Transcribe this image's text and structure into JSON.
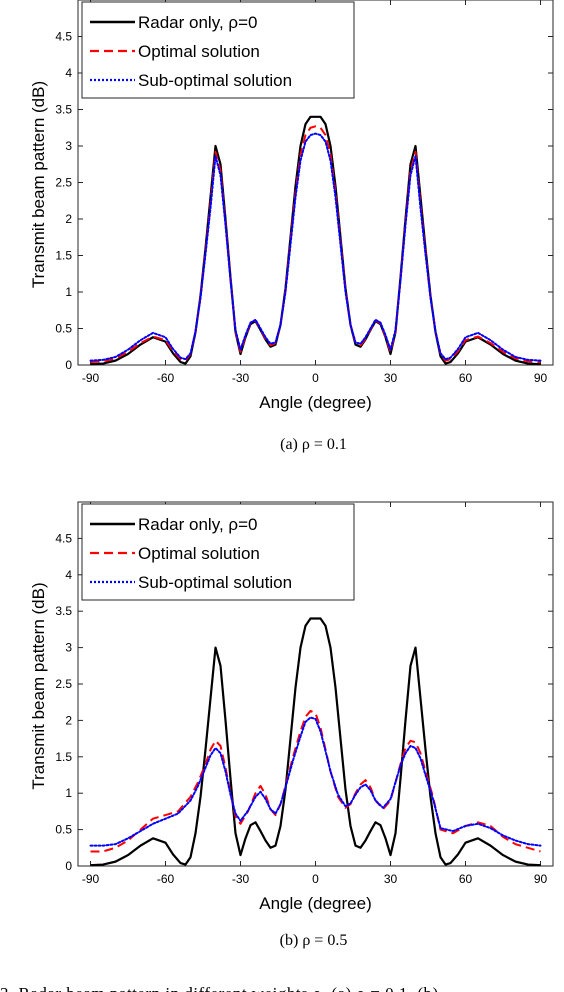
{
  "figure_caption_partial": "3.  Radar beam pattern in different weights ρ. (a) ρ = 0.1, (b)",
  "chart_data": [
    {
      "panel": "a",
      "type": "line",
      "caption": "(a)  ρ = 0.1",
      "xlabel": "Angle (degree)",
      "ylabel": "Transmit beam pattern (dB)",
      "xlim": [
        -95,
        95
      ],
      "ylim": [
        0,
        5
      ],
      "xticks": [
        -90,
        -60,
        -30,
        0,
        30,
        60,
        90
      ],
      "yticks": [
        0,
        0.5,
        1,
        1.5,
        2,
        2.5,
        3,
        3.5,
        4,
        4.5
      ],
      "ytick_labels": [
        "0",
        "0.5",
        "1",
        "1.5",
        "2",
        "2.5",
        "3",
        "3.5",
        "4",
        "4.5"
      ],
      "grid": false,
      "legend_position": "top-left",
      "series": [
        {
          "name": "Radar only, ρ=0",
          "color": "#000000",
          "dash": "solid",
          "x": [
            -90,
            -85,
            -80,
            -75,
            -70,
            -65,
            -60,
            -57,
            -54,
            -52,
            -50,
            -48,
            -46,
            -44,
            -42,
            -40,
            -38,
            -36,
            -34,
            -32,
            -30,
            -28,
            -26,
            -24,
            -22,
            -20,
            -18,
            -16,
            -14,
            -12,
            -10,
            -8,
            -6,
            -4,
            -2,
            0,
            2,
            4,
            6,
            8,
            10,
            12,
            14,
            16,
            18,
            20,
            22,
            24,
            26,
            28,
            30,
            32,
            34,
            36,
            38,
            40,
            42,
            44,
            46,
            48,
            50,
            52,
            54,
            57,
            60,
            65,
            70,
            75,
            80,
            85,
            90
          ],
          "y": [
            0.01,
            0.02,
            0.06,
            0.15,
            0.28,
            0.38,
            0.32,
            0.16,
            0.04,
            0.02,
            0.12,
            0.45,
            0.95,
            1.6,
            2.3,
            3.0,
            2.75,
            2.0,
            1.2,
            0.45,
            0.15,
            0.38,
            0.56,
            0.6,
            0.48,
            0.35,
            0.25,
            0.28,
            0.55,
            1.05,
            1.75,
            2.45,
            3.0,
            3.3,
            3.4,
            3.4,
            3.4,
            3.3,
            3.0,
            2.45,
            1.75,
            1.05,
            0.55,
            0.28,
            0.25,
            0.35,
            0.48,
            0.6,
            0.56,
            0.38,
            0.15,
            0.45,
            1.2,
            2.0,
            2.75,
            3.0,
            2.3,
            1.6,
            0.95,
            0.45,
            0.12,
            0.02,
            0.04,
            0.16,
            0.32,
            0.38,
            0.28,
            0.15,
            0.06,
            0.02,
            0.01
          ]
        },
        {
          "name": "Optimal solution",
          "color": "#ff0000",
          "dash": "dashed",
          "x": [
            -90,
            -85,
            -80,
            -75,
            -70,
            -65,
            -60,
            -57,
            -54,
            -52,
            -50,
            -48,
            -46,
            -44,
            -42,
            -40,
            -38,
            -36,
            -34,
            -32,
            -30,
            -28,
            -26,
            -24,
            -22,
            -20,
            -18,
            -16,
            -14,
            -12,
            -10,
            -8,
            -6,
            -4,
            -2,
            0,
            2,
            4,
            6,
            8,
            10,
            12,
            14,
            16,
            18,
            20,
            22,
            24,
            26,
            28,
            30,
            32,
            34,
            36,
            38,
            40,
            42,
            44,
            46,
            48,
            50,
            52,
            54,
            57,
            60,
            65,
            70,
            75,
            80,
            85,
            90
          ],
          "y": [
            0.04,
            0.05,
            0.09,
            0.18,
            0.3,
            0.39,
            0.34,
            0.19,
            0.08,
            0.06,
            0.15,
            0.46,
            0.93,
            1.55,
            2.2,
            2.92,
            2.66,
            1.95,
            1.17,
            0.46,
            0.18,
            0.39,
            0.57,
            0.61,
            0.49,
            0.36,
            0.27,
            0.3,
            0.55,
            1.02,
            1.69,
            2.36,
            2.88,
            3.15,
            3.25,
            3.27,
            3.25,
            3.15,
            2.88,
            2.36,
            1.69,
            1.02,
            0.55,
            0.3,
            0.27,
            0.36,
            0.49,
            0.61,
            0.57,
            0.39,
            0.18,
            0.46,
            1.17,
            1.95,
            2.66,
            2.92,
            2.2,
            1.55,
            0.93,
            0.46,
            0.15,
            0.06,
            0.08,
            0.19,
            0.34,
            0.39,
            0.3,
            0.18,
            0.09,
            0.05,
            0.04
          ]
        },
        {
          "name": "Sub-optimal solution",
          "color": "#0000ff",
          "dash": "dotted",
          "x": [
            -90,
            -85,
            -80,
            -75,
            -70,
            -65,
            -60,
            -57,
            -54,
            -52,
            -50,
            -48,
            -46,
            -44,
            -42,
            -40,
            -38,
            -36,
            -34,
            -32,
            -30,
            -28,
            -26,
            -24,
            -22,
            -20,
            -18,
            -16,
            -14,
            -12,
            -10,
            -8,
            -6,
            -4,
            -2,
            0,
            2,
            4,
            6,
            8,
            10,
            12,
            14,
            16,
            18,
            20,
            22,
            24,
            26,
            28,
            30,
            32,
            34,
            36,
            38,
            40,
            42,
            44,
            46,
            48,
            50,
            52,
            54,
            57,
            60,
            65,
            70,
            75,
            80,
            85,
            90
          ],
          "y": [
            0.06,
            0.07,
            0.11,
            0.21,
            0.34,
            0.44,
            0.38,
            0.22,
            0.1,
            0.08,
            0.16,
            0.46,
            0.92,
            1.52,
            2.15,
            2.86,
            2.6,
            1.92,
            1.16,
            0.48,
            0.21,
            0.41,
            0.58,
            0.62,
            0.5,
            0.38,
            0.29,
            0.31,
            0.55,
            1.0,
            1.65,
            2.3,
            2.8,
            3.06,
            3.15,
            3.17,
            3.15,
            3.06,
            2.8,
            2.3,
            1.65,
            1.0,
            0.55,
            0.31,
            0.29,
            0.38,
            0.5,
            0.62,
            0.58,
            0.41,
            0.21,
            0.48,
            1.16,
            1.92,
            2.6,
            2.86,
            2.15,
            1.52,
            0.92,
            0.46,
            0.16,
            0.08,
            0.1,
            0.22,
            0.38,
            0.44,
            0.34,
            0.21,
            0.11,
            0.07,
            0.06
          ]
        }
      ]
    },
    {
      "panel": "b",
      "type": "line",
      "caption": "(b)  ρ = 0.5",
      "xlabel": "Angle (degree)",
      "ylabel": "Transmit beam pattern (dB)",
      "xlim": [
        -95,
        95
      ],
      "ylim": [
        0,
        5
      ],
      "xticks": [
        -90,
        -60,
        -30,
        0,
        30,
        60,
        90
      ],
      "yticks": [
        0,
        0.5,
        1,
        1.5,
        2,
        2.5,
        3,
        3.5,
        4,
        4.5
      ],
      "ytick_labels": [
        "0",
        "0.5",
        "1",
        "1.5",
        "2",
        "2.5",
        "3",
        "3.5",
        "4",
        "4.5"
      ],
      "grid": false,
      "legend_position": "top-left",
      "series": [
        {
          "name": "Radar only, ρ=0",
          "color": "#000000",
          "dash": "solid",
          "x": [
            -90,
            -85,
            -80,
            -75,
            -70,
            -65,
            -60,
            -57,
            -54,
            -52,
            -50,
            -48,
            -46,
            -44,
            -42,
            -40,
            -38,
            -36,
            -34,
            -32,
            -30,
            -28,
            -26,
            -24,
            -22,
            -20,
            -18,
            -16,
            -14,
            -12,
            -10,
            -8,
            -6,
            -4,
            -2,
            0,
            2,
            4,
            6,
            8,
            10,
            12,
            14,
            16,
            18,
            20,
            22,
            24,
            26,
            28,
            30,
            32,
            34,
            36,
            38,
            40,
            42,
            44,
            46,
            48,
            50,
            52,
            54,
            57,
            60,
            65,
            70,
            75,
            80,
            85,
            90
          ],
          "y": [
            0.01,
            0.02,
            0.06,
            0.15,
            0.28,
            0.38,
            0.32,
            0.16,
            0.04,
            0.02,
            0.12,
            0.45,
            0.95,
            1.6,
            2.3,
            3.0,
            2.75,
            2.0,
            1.2,
            0.45,
            0.15,
            0.38,
            0.56,
            0.6,
            0.48,
            0.35,
            0.25,
            0.28,
            0.55,
            1.05,
            1.75,
            2.45,
            3.0,
            3.3,
            3.4,
            3.4,
            3.4,
            3.3,
            3.0,
            2.45,
            1.75,
            1.05,
            0.55,
            0.28,
            0.25,
            0.35,
            0.48,
            0.6,
            0.56,
            0.38,
            0.15,
            0.45,
            1.2,
            2.0,
            2.75,
            3.0,
            2.3,
            1.6,
            0.95,
            0.45,
            0.12,
            0.02,
            0.04,
            0.16,
            0.32,
            0.38,
            0.28,
            0.15,
            0.06,
            0.02,
            0.01
          ]
        },
        {
          "name": "Optimal solution",
          "color": "#ff0000",
          "dash": "dashed",
          "x": [
            -90,
            -85,
            -80,
            -75,
            -70,
            -65,
            -60,
            -55,
            -50,
            -47,
            -44,
            -42,
            -40,
            -38,
            -36,
            -34,
            -32,
            -30,
            -27,
            -24,
            -22,
            -20,
            -18,
            -16,
            -14,
            -12,
            -9,
            -6,
            -4,
            -2,
            0,
            2,
            4,
            6,
            9,
            12,
            14,
            16,
            18,
            20,
            22,
            24,
            27,
            30,
            32,
            34,
            36,
            38,
            40,
            42,
            44,
            47,
            50,
            55,
            60,
            65,
            70,
            75,
            80,
            85,
            90
          ],
          "y": [
            0.2,
            0.2,
            0.25,
            0.35,
            0.5,
            0.65,
            0.7,
            0.75,
            0.95,
            1.15,
            1.4,
            1.6,
            1.72,
            1.65,
            1.35,
            1.0,
            0.68,
            0.58,
            0.75,
            1.0,
            1.1,
            0.98,
            0.78,
            0.7,
            0.85,
            1.1,
            1.5,
            1.85,
            2.05,
            2.13,
            2.1,
            1.9,
            1.6,
            1.3,
            0.95,
            0.8,
            0.85,
            1.0,
            1.12,
            1.18,
            1.08,
            0.9,
            0.78,
            0.9,
            1.15,
            1.4,
            1.62,
            1.72,
            1.7,
            1.55,
            1.3,
            0.95,
            0.5,
            0.45,
            0.55,
            0.6,
            0.55,
            0.4,
            0.3,
            0.25,
            0.2
          ]
        },
        {
          "name": "Sub-optimal solution",
          "color": "#0000ff",
          "dash": "dotted",
          "x": [
            -90,
            -85,
            -80,
            -75,
            -70,
            -65,
            -60,
            -55,
            -50,
            -47,
            -44,
            -42,
            -40,
            -38,
            -36,
            -34,
            -32,
            -30,
            -27,
            -24,
            -22,
            -20,
            -18,
            -16,
            -14,
            -12,
            -9,
            -6,
            -4,
            -2,
            0,
            2,
            4,
            6,
            9,
            12,
            14,
            16,
            18,
            20,
            22,
            24,
            27,
            30,
            32,
            34,
            36,
            38,
            40,
            42,
            44,
            47,
            50,
            55,
            60,
            65,
            70,
            75,
            80,
            85,
            90
          ],
          "y": [
            0.28,
            0.28,
            0.3,
            0.38,
            0.48,
            0.58,
            0.65,
            0.72,
            0.9,
            1.1,
            1.35,
            1.52,
            1.62,
            1.55,
            1.3,
            0.98,
            0.72,
            0.62,
            0.76,
            0.95,
            1.02,
            0.92,
            0.78,
            0.72,
            0.85,
            1.08,
            1.45,
            1.78,
            1.98,
            2.04,
            2.02,
            1.85,
            1.58,
            1.3,
            0.98,
            0.82,
            0.86,
            0.98,
            1.08,
            1.12,
            1.04,
            0.9,
            0.8,
            0.92,
            1.15,
            1.38,
            1.55,
            1.65,
            1.62,
            1.48,
            1.25,
            0.92,
            0.52,
            0.48,
            0.55,
            0.58,
            0.52,
            0.42,
            0.35,
            0.3,
            0.28
          ]
        }
      ]
    }
  ]
}
